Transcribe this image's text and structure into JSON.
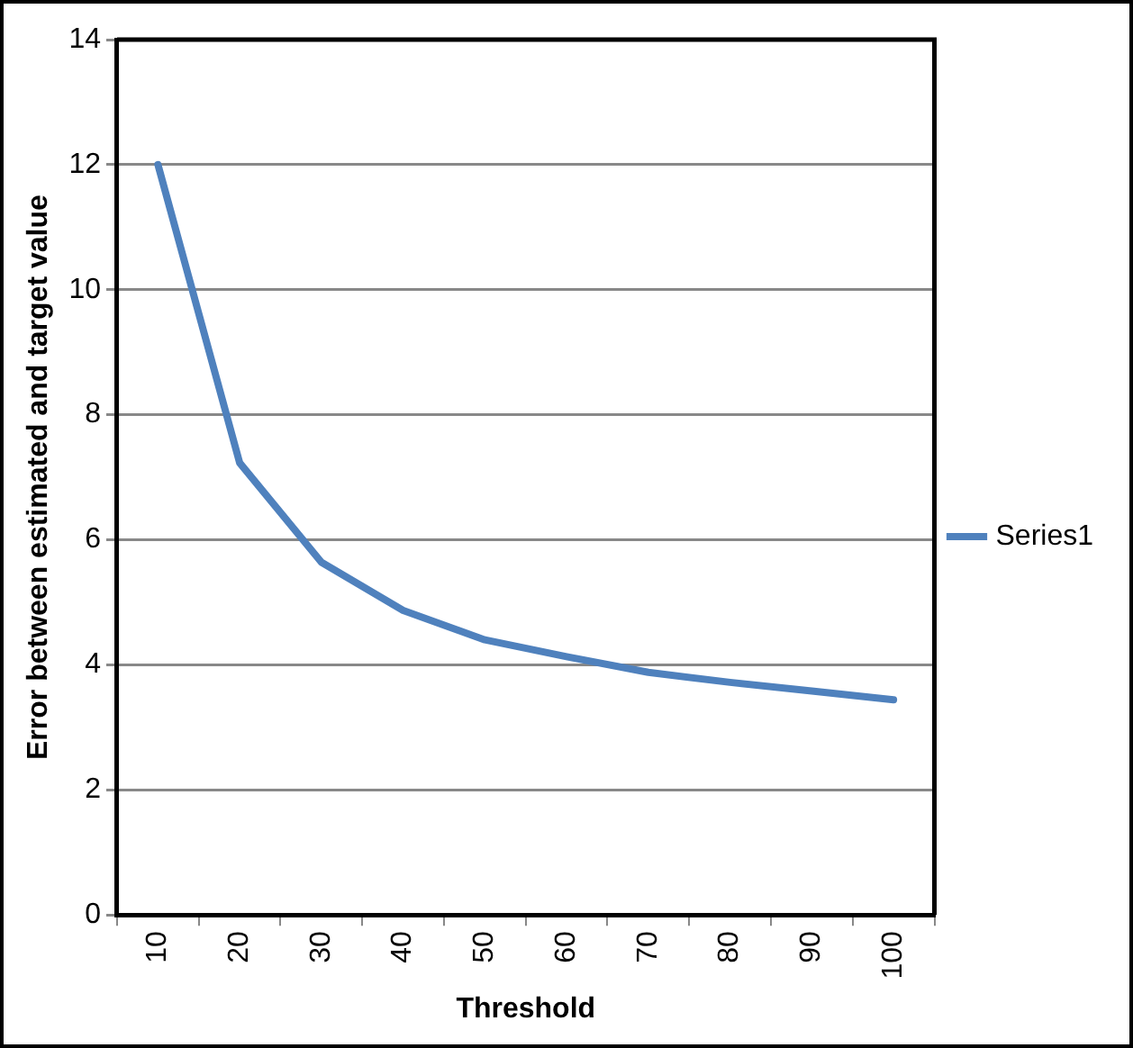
{
  "chart_data": {
    "type": "line",
    "xlabel": "Threshold",
    "ylabel": "Error between estimated and target value",
    "categories": [
      "10",
      "20",
      "30",
      "40",
      "50",
      "60",
      "70",
      "80",
      "90",
      "100"
    ],
    "series": [
      {
        "name": "Series1",
        "color": "#4f81bd",
        "values": [
          12.0,
          7.23,
          5.64,
          4.87,
          4.4,
          4.13,
          3.88,
          3.72,
          3.58,
          3.44
        ]
      }
    ],
    "ylim": [
      0,
      14
    ],
    "yticks": [
      0,
      2,
      4,
      6,
      8,
      10,
      12,
      14
    ],
    "grid": "y",
    "legend": "right",
    "marker": "none",
    "line_style": "solid"
  }
}
